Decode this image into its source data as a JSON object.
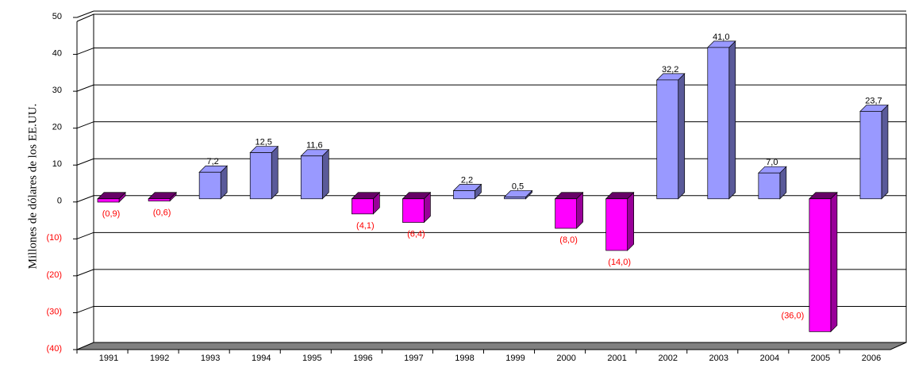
{
  "chart_data": {
    "type": "bar3d",
    "y_axis_label": "Millones de dólares de los EE.UU.",
    "categories": [
      "1991",
      "1992",
      "1993",
      "1994",
      "1995",
      "1996",
      "1997",
      "1998",
      "1999",
      "2000",
      "2001",
      "2002",
      "2003",
      "2004",
      "2005",
      "2006"
    ],
    "values": [
      -0.9,
      -0.6,
      7.2,
      12.5,
      11.6,
      -4.1,
      -6.4,
      2.2,
      0.5,
      -8.0,
      -14.0,
      32.2,
      41.0,
      7.0,
      -36.0,
      23.7
    ],
    "value_labels": [
      "(0,9)",
      "(0,6)",
      "7,2",
      "12,5",
      "11,6",
      "(4,1)",
      "(6,4)",
      "2,2",
      "0,5",
      "(8,0)",
      "(14,0)",
      "32,2",
      "41,0",
      "7,0",
      "(36,0)",
      "23,7"
    ],
    "positive_color": "#9999ff",
    "negative_color": "#ff00ff",
    "positive_label_color": "#000000",
    "negative_label_color": "#ff0000",
    "ylim": [
      -40,
      50
    ],
    "yticks": [
      {
        "value": -40,
        "label": "(40)"
      },
      {
        "value": -30,
        "label": "(30)"
      },
      {
        "value": -20,
        "label": "(20)"
      },
      {
        "value": -10,
        "label": "(10)"
      },
      0,
      10,
      20,
      30,
      40,
      50
    ],
    "grid": true
  }
}
